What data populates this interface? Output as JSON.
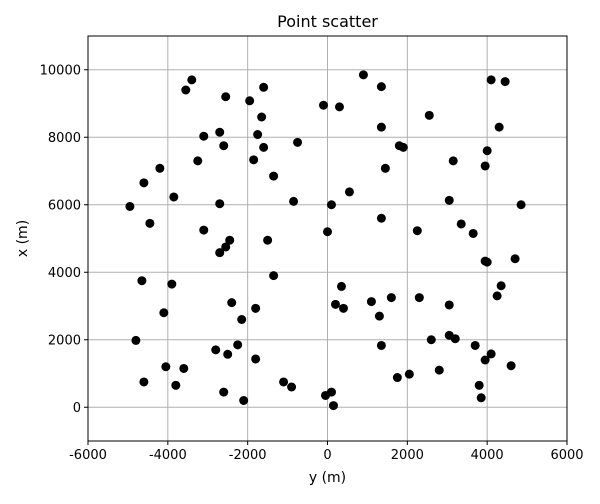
{
  "chart_data": {
    "type": "scatter",
    "title": "Point scatter",
    "xlabel": "y (m)",
    "ylabel": "x (m)",
    "xlim": [
      -6000,
      6000
    ],
    "ylim": [
      -1000,
      11000
    ],
    "xticks": [
      -6000,
      -4000,
      -2000,
      0,
      2000,
      4000,
      6000
    ],
    "yticks": [
      0,
      2000,
      4000,
      6000,
      8000,
      10000
    ],
    "grid": true,
    "marker_color": "#000000",
    "points": [
      [
        -3400,
        9700
      ],
      [
        -3550,
        9400
      ],
      [
        -2550,
        9200
      ],
      [
        -1600,
        9480
      ],
      [
        -1950,
        9080
      ],
      [
        900,
        9850
      ],
      [
        1350,
        9500
      ],
      [
        -100,
        8950
      ],
      [
        300,
        8900
      ],
      [
        4100,
        9700
      ],
      [
        4450,
        9650
      ],
      [
        -1650,
        8600
      ],
      [
        2550,
        8650
      ],
      [
        -3100,
        8030
      ],
      [
        -2700,
        8150
      ],
      [
        -1750,
        8080
      ],
      [
        1350,
        8300
      ],
      [
        4300,
        8300
      ],
      [
        -2600,
        7750
      ],
      [
        -1600,
        7700
      ],
      [
        -750,
        7850
      ],
      [
        1800,
        7750
      ],
      [
        1900,
        7700
      ],
      [
        -3250,
        7300
      ],
      [
        -1850,
        7330
      ],
      [
        4000,
        7600
      ],
      [
        -4200,
        7080
      ],
      [
        -1350,
        6850
      ],
      [
        1450,
        7080
      ],
      [
        3150,
        7300
      ],
      [
        3950,
        7150
      ],
      [
        -4600,
        6650
      ],
      [
        550,
        6380
      ],
      [
        -3850,
        6230
      ],
      [
        -4950,
        5950
      ],
      [
        -2700,
        6030
      ],
      [
        -850,
        6100
      ],
      [
        100,
        6000
      ],
      [
        3050,
        6130
      ],
      [
        4850,
        6000
      ],
      [
        -4450,
        5450
      ],
      [
        -3100,
        5250
      ],
      [
        1350,
        5600
      ],
      [
        2250,
        5230
      ],
      [
        3350,
        5430
      ],
      [
        3650,
        5150
      ],
      [
        -2450,
        4950
      ],
      [
        -1500,
        4950
      ],
      [
        0,
        5200
      ],
      [
        -2550,
        4750
      ],
      [
        -2700,
        4580
      ],
      [
        3950,
        4330
      ],
      [
        4000,
        4300
      ],
      [
        4700,
        4400
      ],
      [
        -1350,
        3900
      ],
      [
        -4650,
        3750
      ],
      [
        -3900,
        3650
      ],
      [
        350,
        3580
      ],
      [
        4350,
        3600
      ],
      [
        -2400,
        3100
      ],
      [
        200,
        3050
      ],
      [
        400,
        2930
      ],
      [
        1100,
        3130
      ],
      [
        1600,
        3250
      ],
      [
        2300,
        3250
      ],
      [
        3050,
        3030
      ],
      [
        4250,
        3300
      ],
      [
        -1800,
        2930
      ],
      [
        -4100,
        2800
      ],
      [
        -2150,
        2600
      ],
      [
        1300,
        2700
      ],
      [
        -4800,
        1980
      ],
      [
        -2250,
        1850
      ],
      [
        3050,
        2130
      ],
      [
        3200,
        2030
      ],
      [
        2600,
        2000
      ],
      [
        1350,
        1830
      ],
      [
        3700,
        1830
      ],
      [
        -2800,
        1700
      ],
      [
        -2500,
        1570
      ],
      [
        -1800,
        1430
      ],
      [
        3950,
        1400
      ],
      [
        4100,
        1580
      ],
      [
        -4050,
        1200
      ],
      [
        -3600,
        1150
      ],
      [
        4600,
        1230
      ],
      [
        2800,
        1100
      ],
      [
        1750,
        880
      ],
      [
        2050,
        980
      ],
      [
        -4600,
        750
      ],
      [
        -3800,
        650
      ],
      [
        -1100,
        750
      ],
      [
        -900,
        600
      ],
      [
        -2600,
        450
      ],
      [
        -2100,
        200
      ],
      [
        -50,
        350
      ],
      [
        100,
        450
      ],
      [
        150,
        50
      ],
      [
        3800,
        650
      ],
      [
        3850,
        280
      ]
    ]
  }
}
